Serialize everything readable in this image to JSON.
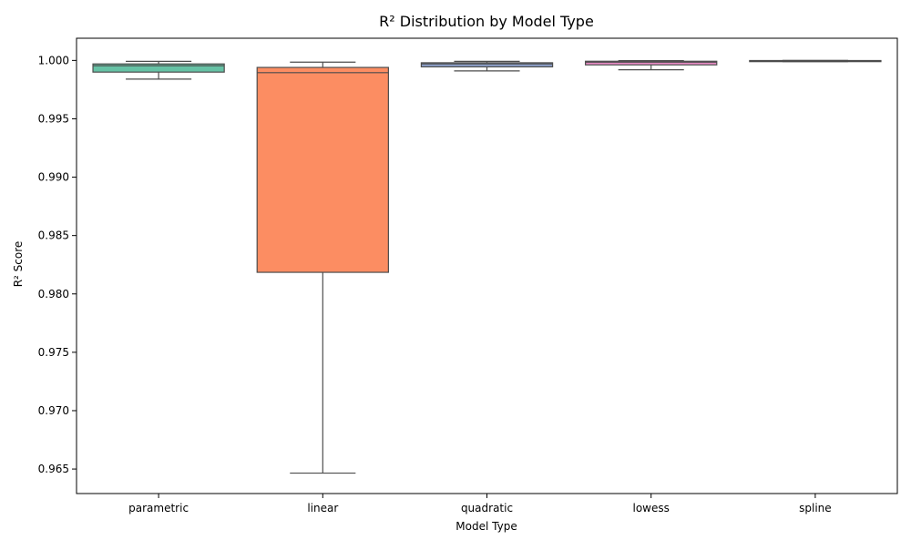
{
  "chart_data": {
    "type": "box",
    "title": "R² Distribution by Model Type",
    "xlabel": "Model Type",
    "ylabel": "R² Score",
    "ylim": [
      0.9629,
      1.0019
    ],
    "yticks": [
      0.965,
      0.97,
      0.975,
      0.98,
      0.985,
      0.99,
      0.995,
      1.0
    ],
    "ytick_labels": [
      "0.965",
      "0.970",
      "0.975",
      "0.980",
      "0.985",
      "0.990",
      "0.995",
      "1.000"
    ],
    "grid": false,
    "categories": [
      "parametric",
      "linear",
      "quadratic",
      "lowess",
      "spline"
    ],
    "boxes": [
      {
        "category": "parametric",
        "whisker_low": 0.9984,
        "q1": 0.999,
        "median": 0.99955,
        "q3": 0.9997,
        "whisker_high": 0.99992,
        "color": "#66c2a5"
      },
      {
        "category": "linear",
        "whisker_low": 0.96465,
        "q1": 0.98185,
        "median": 0.99895,
        "q3": 0.9994,
        "whisker_high": 0.99985,
        "color": "#fc8d62"
      },
      {
        "category": "quadratic",
        "whisker_low": 0.9991,
        "q1": 0.99945,
        "median": 0.9997,
        "q3": 0.9998,
        "whisker_high": 0.99992,
        "color": "#8da0cb"
      },
      {
        "category": "lowess",
        "whisker_low": 0.9992,
        "q1": 0.99962,
        "median": 0.99985,
        "q3": 0.99993,
        "whisker_high": 0.99998,
        "color": "#e78ac3"
      },
      {
        "category": "spline",
        "whisker_low": 0.9999,
        "q1": 0.99993,
        "median": 0.99997,
        "q3": 0.99999,
        "whisker_high": 1.0,
        "color": "#a6d854"
      }
    ]
  }
}
